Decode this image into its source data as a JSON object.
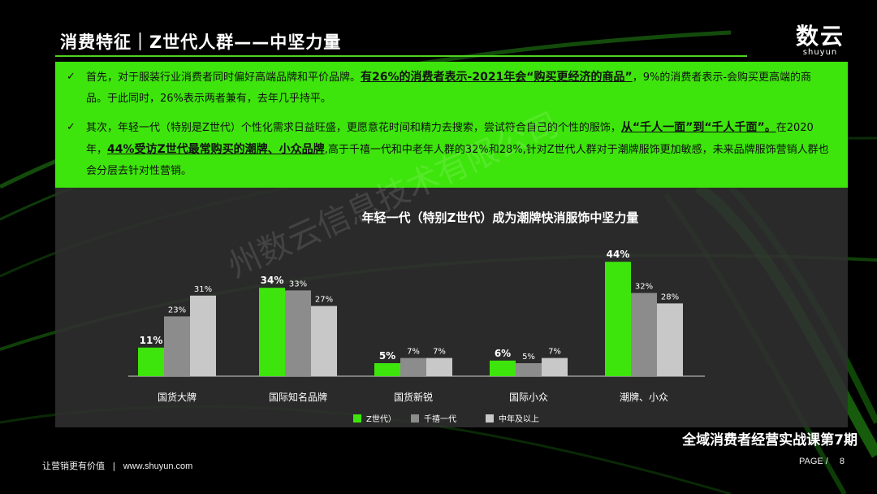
{
  "header": {
    "title": "消费特征｜Z世代人群——中坚力量",
    "brand_name": "数云",
    "brand_sub": "shuyun"
  },
  "bullets": [
    {
      "check": "✓",
      "text_before": "首先，对于服装行业消费者同时偏好高端品牌和平价品牌。",
      "highlight": "有26%的消费者表示-2021年会“购买更经济的商品”",
      "text_after": "，9%的消费者表示-会购买更高端的商品。于此同时，26%表示两者兼有，去年几乎持平。"
    },
    {
      "check": "✓",
      "text_before": "其次，年轻一代（特别是Z世代）个性化需求日益旺盛，更愿意花时间和精力去搜索，尝试符合自己的个性的服饰，",
      "highlight": "从“千人一面”到“千人千面”。",
      "text_mid": "在2020年，",
      "highlight2": "44%受访Z世代最常购买的潮牌、小众品牌",
      "text_after": ",高于千禧一代和中老年人群的32%和28%,针对Z世代人群对于潮牌服饰更加敏感，未来品牌服饰营销人群也会分层去针对性营销。"
    }
  ],
  "watermark": "州数云信息技术有限公司",
  "chart_data": {
    "type": "bar",
    "title": "年轻一代（特别Z世代）成为潮牌快消服饰中坚力量",
    "categories": [
      "国货大牌",
      "国际知名品牌",
      "国货新锐",
      "国际小众",
      "潮牌、小众"
    ],
    "series": [
      {
        "name": "Z世代）",
        "color": "#3ee50c",
        "values": [
          11,
          34,
          5,
          6,
          44
        ],
        "labels": [
          "11%",
          "34%",
          "5%",
          "6%",
          "44%"
        ]
      },
      {
        "name": "千禧一代",
        "color": "#8c8c8c",
        "values": [
          23,
          33,
          7,
          5,
          32
        ],
        "labels": [
          "23%",
          "33%",
          "7%",
          "5%",
          "32%"
        ]
      },
      {
        "name": "中年及以上",
        "color": "#c8c8c8",
        "values": [
          31,
          27,
          7,
          7,
          28
        ],
        "labels": [
          "31%",
          "27%",
          "7%",
          "7%",
          "28%"
        ]
      }
    ],
    "ylim": [
      0,
      50
    ],
    "legend": "bottom",
    "grid": false
  },
  "footer": {
    "slogan": "让营销更有价值",
    "divider": "|",
    "site": "www.shuyun.com",
    "course": "全域消费者经营实战课第7期",
    "page_label": "PAGE /",
    "page_number": "8"
  }
}
